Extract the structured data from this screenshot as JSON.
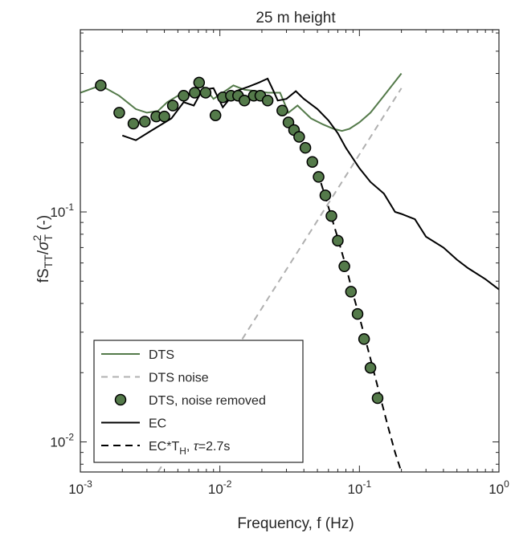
{
  "chart_data": {
    "type": "line",
    "title": "25 m height",
    "xlabel": "Frequency, f (Hz)",
    "ylabel": {
      "base": "fS",
      "sub1": "TT",
      "slash": "/",
      "sigma": "σ",
      "sup": "2",
      "sub2": "T",
      "unit": " (-)"
    },
    "xscale": "log",
    "yscale": "log",
    "xlim": [
      0.001,
      1
    ],
    "ylim": [
      0.0074,
      0.62
    ],
    "xticks": [
      {
        "value": 0.001,
        "base": "10",
        "exp": "-3"
      },
      {
        "value": 0.01,
        "base": "10",
        "exp": "-2"
      },
      {
        "value": 0.1,
        "base": "10",
        "exp": "-1"
      },
      {
        "value": 1,
        "base": "10",
        "exp": "0"
      }
    ],
    "yticks": [
      {
        "value": 0.01,
        "base": "10",
        "exp": "-2"
      },
      {
        "value": 0.1,
        "base": "10",
        "exp": "-1"
      }
    ],
    "legend": {
      "placement": "bottom-left",
      "entries": [
        {
          "key": "dts",
          "label": "DTS"
        },
        {
          "key": "noise",
          "label": "DTS noise"
        },
        {
          "key": "removed",
          "label": "DTS, noise removed"
        },
        {
          "key": "ec",
          "label": "EC"
        },
        {
          "key": "ecth",
          "label": "EC*T",
          "sub": "H",
          "tail": ", ",
          "tau": "τ",
          "tau_tail": "=2.7s"
        }
      ]
    },
    "colors": {
      "dts": "#547a4a",
      "noise": "#b0b0b0",
      "marker_fill": "#547a4a",
      "marker_edge": "#000000",
      "ec": "#000000",
      "ecth": "#000000"
    },
    "series": [
      {
        "key": "dts",
        "style": "solid",
        "x": [
          0.001,
          0.0014,
          0.0019,
          0.0025,
          0.003,
          0.0036,
          0.0042,
          0.005,
          0.0057,
          0.0065,
          0.0072,
          0.008,
          0.009,
          0.0105,
          0.0125,
          0.015,
          0.0185,
          0.022,
          0.027,
          0.031,
          0.036,
          0.045,
          0.055,
          0.065,
          0.075,
          0.085,
          0.1,
          0.12,
          0.15,
          0.2
        ],
        "y": [
          0.33,
          0.355,
          0.32,
          0.28,
          0.27,
          0.275,
          0.3,
          0.32,
          0.33,
          0.32,
          0.36,
          0.34,
          0.31,
          0.33,
          0.355,
          0.34,
          0.335,
          0.33,
          0.33,
          0.27,
          0.29,
          0.255,
          0.24,
          0.23,
          0.225,
          0.23,
          0.245,
          0.27,
          0.32,
          0.4
        ]
      },
      {
        "key": "noise",
        "style": "dashed",
        "x": [
          0.0036,
          0.2
        ],
        "y": [
          0.0074,
          0.345
        ]
      },
      {
        "key": "removed",
        "style": "markers",
        "x": [
          0.0014,
          0.0019,
          0.0024,
          0.0029,
          0.0035,
          0.004,
          0.0046,
          0.0055,
          0.0066,
          0.0071,
          0.0079,
          0.0093,
          0.0105,
          0.012,
          0.0135,
          0.015,
          0.0175,
          0.0195,
          0.022,
          0.028,
          0.031,
          0.034,
          0.037,
          0.041,
          0.046,
          0.051,
          0.057,
          0.063,
          0.07,
          0.078,
          0.087,
          0.097,
          0.108,
          0.12,
          0.135
        ],
        "y": [
          0.355,
          0.27,
          0.242,
          0.247,
          0.26,
          0.26,
          0.29,
          0.32,
          0.33,
          0.365,
          0.33,
          0.263,
          0.315,
          0.32,
          0.32,
          0.305,
          0.32,
          0.32,
          0.305,
          0.276,
          0.245,
          0.227,
          0.212,
          0.19,
          0.165,
          0.142,
          0.118,
          0.096,
          0.075,
          0.058,
          0.045,
          0.036,
          0.028,
          0.021,
          0.0155
        ]
      },
      {
        "key": "ec",
        "style": "solid",
        "x": [
          0.002,
          0.0025,
          0.0032,
          0.0045,
          0.0055,
          0.0065,
          0.0075,
          0.009,
          0.0105,
          0.013,
          0.016,
          0.019,
          0.022,
          0.024,
          0.026,
          0.03,
          0.035,
          0.04,
          0.05,
          0.06,
          0.07,
          0.08,
          0.1,
          0.12,
          0.15,
          0.18,
          0.2,
          0.25,
          0.3,
          0.4,
          0.5,
          0.6,
          0.8,
          1
        ],
        "y": [
          0.215,
          0.205,
          0.225,
          0.255,
          0.3,
          0.29,
          0.34,
          0.345,
          0.285,
          0.335,
          0.35,
          0.365,
          0.38,
          0.34,
          0.305,
          0.31,
          0.335,
          0.31,
          0.28,
          0.25,
          0.22,
          0.19,
          0.155,
          0.135,
          0.12,
          0.1,
          0.098,
          0.093,
          0.078,
          0.07,
          0.062,
          0.057,
          0.051,
          0.046
        ]
      },
      {
        "key": "ecth",
        "style": "dashed",
        "x": [
          0.05,
          0.06,
          0.07,
          0.08,
          0.09,
          0.1,
          0.12,
          0.14,
          0.16,
          0.18,
          0.2
        ],
        "y": [
          0.15,
          0.105,
          0.077,
          0.058,
          0.044,
          0.035,
          0.023,
          0.016,
          0.0117,
          0.009,
          0.0074
        ]
      }
    ]
  }
}
